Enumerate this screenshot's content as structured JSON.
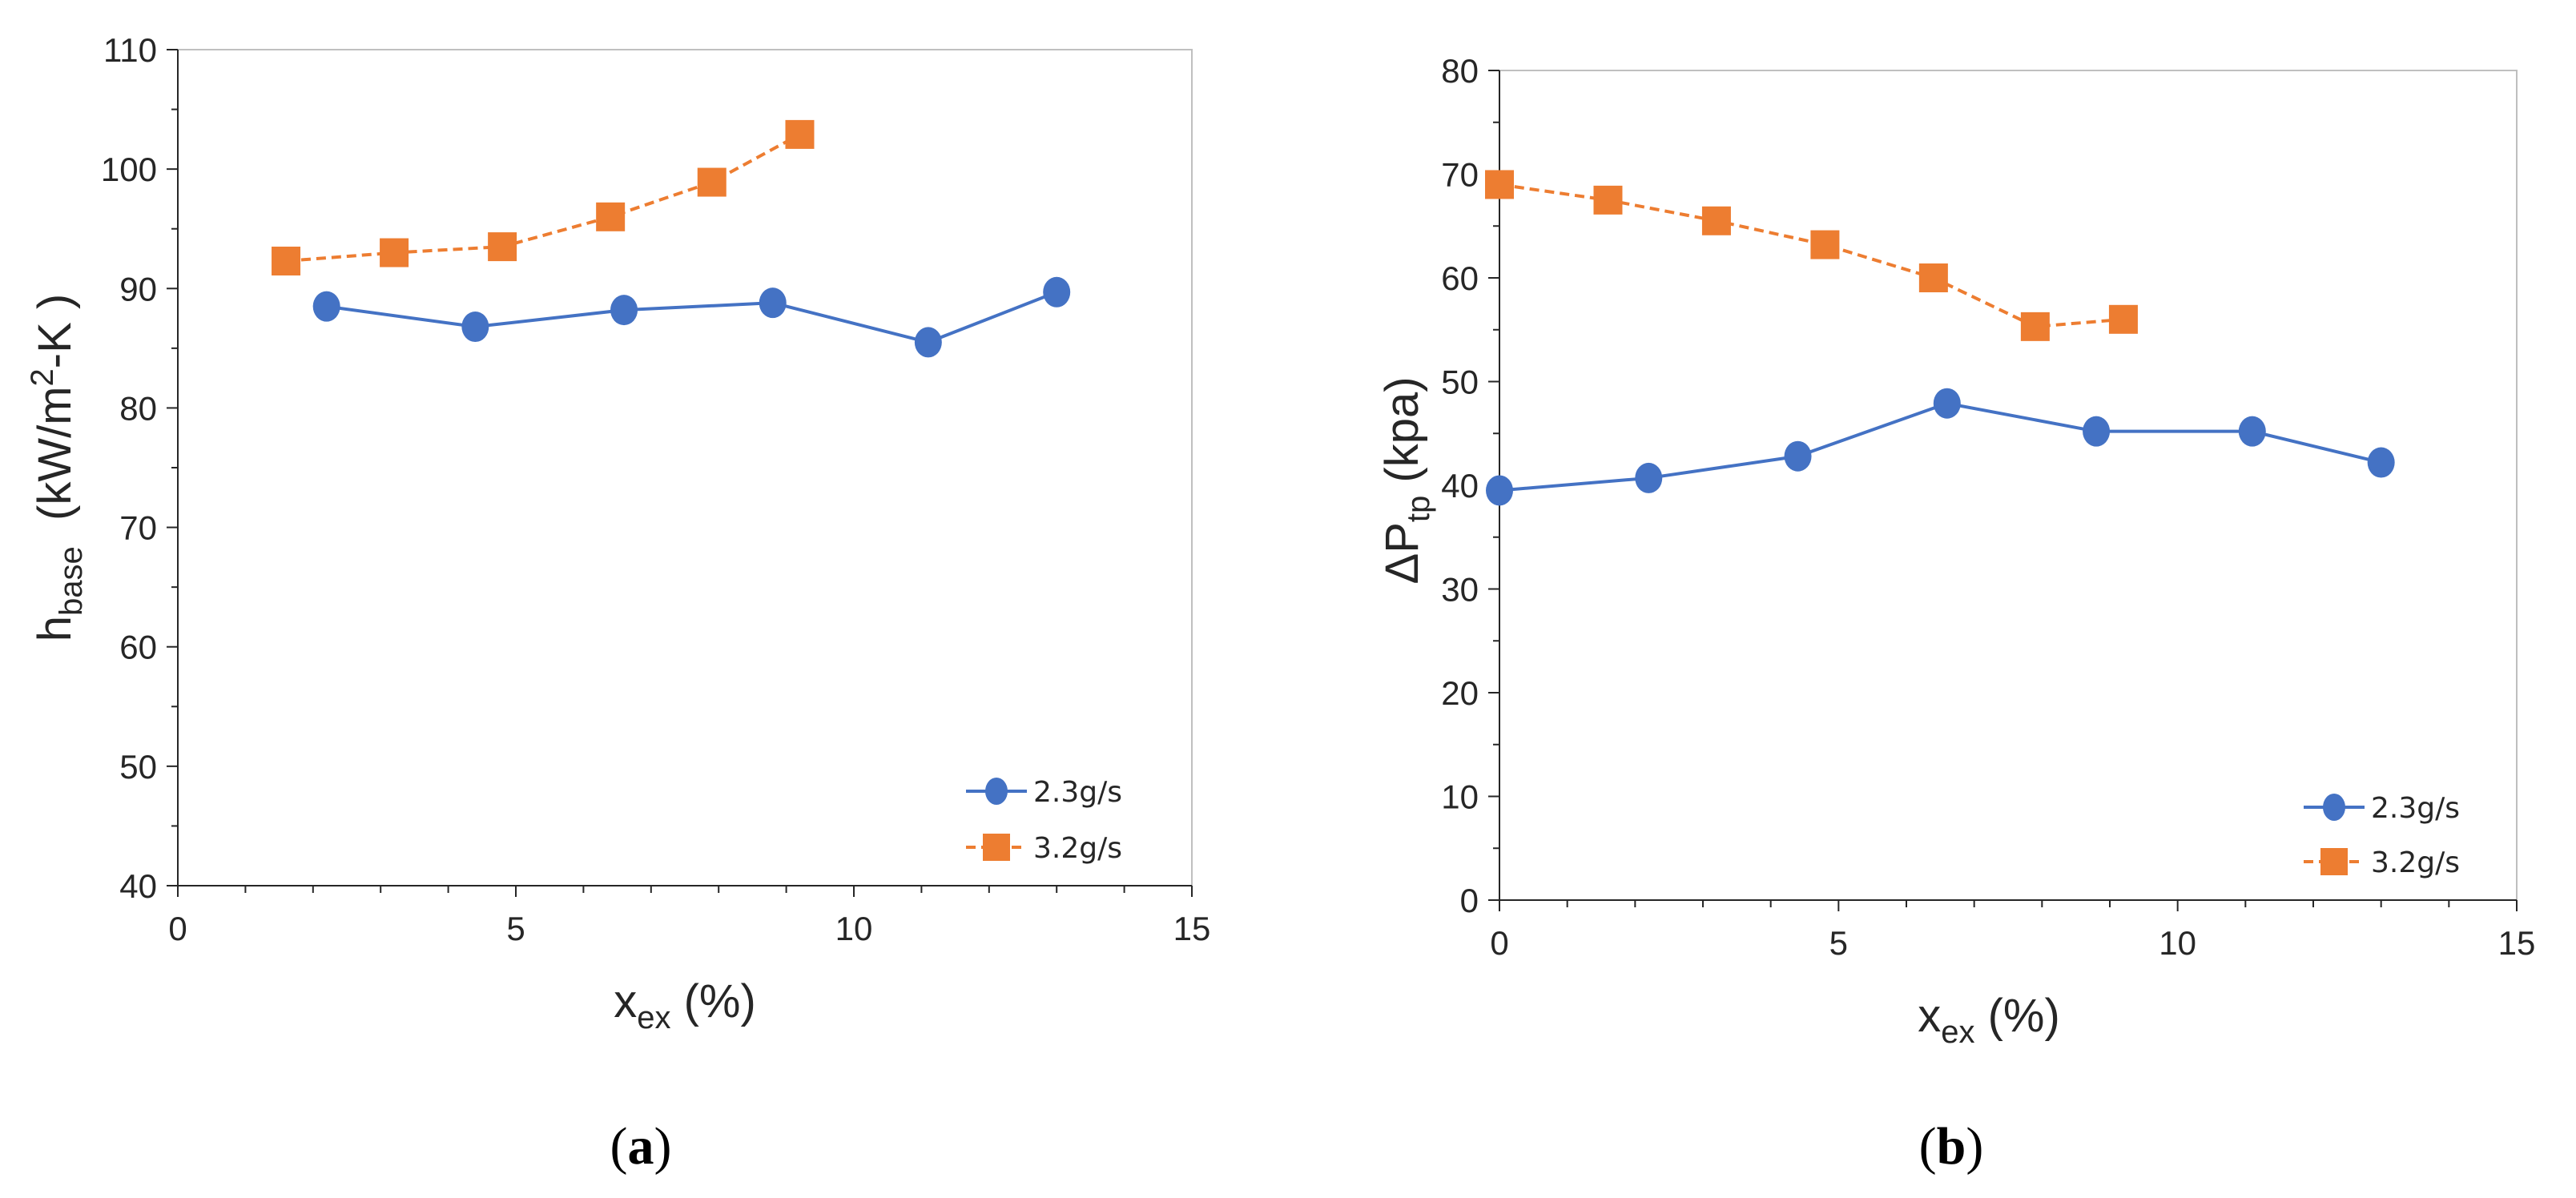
{
  "colors": {
    "series1": "#4472C4",
    "series2": "#ED7D31",
    "axis": "#262626",
    "frame": "#bfbfbf"
  },
  "chart_data": [
    {
      "type": "line",
      "panel_label": {
        "open": "(",
        "letter": "a",
        "close": ")"
      },
      "xlabel": {
        "main": "x",
        "sub": "ex",
        "tail": " (%)"
      },
      "ylabel": {
        "main": "h",
        "sub": "base",
        "unit_pre": "  (kW/m",
        "unit_sup": "2",
        "unit_post": "-K )"
      },
      "xlim": [
        0,
        15
      ],
      "ylim": [
        40,
        110
      ],
      "xticks": [
        0,
        5,
        10,
        15
      ],
      "yticks": [
        40,
        50,
        60,
        70,
        80,
        90,
        100,
        110
      ],
      "legend_position": "bottom-right",
      "series": [
        {
          "name": "2.3g/s",
          "marker": "circle",
          "line": "solid",
          "x": [
            2.2,
            4.4,
            6.6,
            8.8,
            11.1,
            13.0
          ],
          "y": [
            88.5,
            86.8,
            88.2,
            88.8,
            85.5,
            89.7
          ]
        },
        {
          "name": "3.2g/s",
          "marker": "square",
          "line": "dashed",
          "x": [
            1.6,
            3.2,
            4.8,
            6.4,
            7.9,
            9.2
          ],
          "y": [
            92.3,
            93.0,
            93.5,
            96.0,
            98.9,
            102.9
          ]
        }
      ]
    },
    {
      "type": "line",
      "panel_label": {
        "open": "(",
        "letter": "b",
        "close": ")"
      },
      "xlabel": {
        "main": "x",
        "sub": "ex",
        "tail": " (%)"
      },
      "ylabel": {
        "main": "ΔP",
        "sub": "tp",
        "unit_pre": " (kpa)",
        "unit_sup": "",
        "unit_post": ""
      },
      "xlim": [
        0,
        15
      ],
      "ylim": [
        0,
        80
      ],
      "xticks": [
        0,
        5,
        10,
        15
      ],
      "yticks": [
        0,
        10,
        20,
        30,
        40,
        50,
        60,
        70,
        80
      ],
      "legend_position": "bottom-right",
      "series": [
        {
          "name": "2.3g/s",
          "marker": "circle",
          "line": "solid",
          "x": [
            0.0,
            2.2,
            4.4,
            6.6,
            8.8,
            11.1,
            13.0
          ],
          "y": [
            39.5,
            40.7,
            42.8,
            47.9,
            45.2,
            45.2,
            42.2
          ]
        },
        {
          "name": "3.2g/s",
          "marker": "square",
          "line": "dashed",
          "x": [
            0.0,
            1.6,
            3.2,
            4.8,
            6.4,
            7.9,
            9.2
          ],
          "y": [
            69.0,
            67.5,
            65.5,
            63.2,
            60.0,
            55.3,
            56.0
          ]
        }
      ]
    }
  ]
}
